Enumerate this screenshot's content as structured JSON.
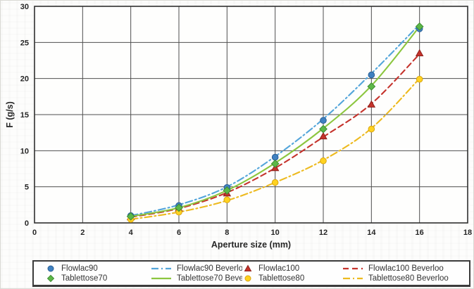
{
  "figure": {
    "background": "#fdfdfc",
    "grid_color": "#4f4f4f",
    "border_color": "#2f2f2f",
    "text_color": "#262626"
  },
  "chart_data": {
    "type": "scatter",
    "title": "",
    "xlabel": "Aperture size (mm)",
    "ylabel": "F (g/s)",
    "xlim": [
      0,
      18
    ],
    "ylim": [
      0,
      30
    ],
    "xticks": [
      0,
      2,
      4,
      6,
      8,
      10,
      12,
      14,
      16,
      18
    ],
    "yticks": [
      0,
      5,
      10,
      15,
      20,
      25,
      30
    ],
    "grid": true,
    "legend_position": "bottom",
    "x": [
      4,
      6,
      8,
      10,
      12,
      14,
      16
    ],
    "series": [
      {
        "name": "Flowlac90",
        "kind": "marker",
        "marker": "circle",
        "color": "#3f81c1",
        "edge": "#2a5e93",
        "values": [
          1.0,
          2.4,
          4.9,
          9.1,
          14.2,
          20.5,
          26.9
        ]
      },
      {
        "name": "Flowlac90 Beverloo",
        "kind": "line",
        "dash": "dashdot",
        "color": "#53a5da",
        "values": [
          1.0,
          2.5,
          5.0,
          9.2,
          14.4,
          20.7,
          27.5
        ]
      },
      {
        "name": "Flowlac100",
        "kind": "marker",
        "marker": "triangle",
        "color": "#c5332c",
        "edge": "#8e201b",
        "values": [
          0.8,
          2.0,
          4.1,
          7.6,
          12.0,
          16.4,
          23.5
        ]
      },
      {
        "name": "Flowlac100 Beverloo",
        "kind": "line",
        "dash": "dashed",
        "color": "#c5332c",
        "values": [
          0.8,
          2.0,
          4.2,
          7.6,
          11.9,
          16.5,
          23.4
        ]
      },
      {
        "name": "Tablettose70",
        "kind": "marker",
        "marker": "diamond",
        "color": "#5cb848",
        "edge": "#3f8c33",
        "values": [
          0.9,
          2.1,
          4.5,
          8.2,
          13.0,
          18.9,
          27.2
        ]
      },
      {
        "name": "Tablettose70 Beverloo",
        "kind": "line",
        "dash": "solid",
        "color": "#8cc63f",
        "values": [
          0.9,
          2.1,
          4.5,
          8.3,
          13.1,
          19.0,
          27.2
        ]
      },
      {
        "name": "Tablettose80",
        "kind": "marker",
        "marker": "circle",
        "color": "#ffd220",
        "edge": "#d8a513",
        "values": [
          0.5,
          1.5,
          3.2,
          5.6,
          8.6,
          13.0,
          19.9
        ]
      },
      {
        "name": "Tablettose80 Beverloo",
        "kind": "line",
        "dash": "dashdot",
        "color": "#edba1f",
        "values": [
          0.5,
          1.5,
          3.1,
          5.6,
          8.7,
          13.1,
          20.0
        ]
      }
    ]
  }
}
